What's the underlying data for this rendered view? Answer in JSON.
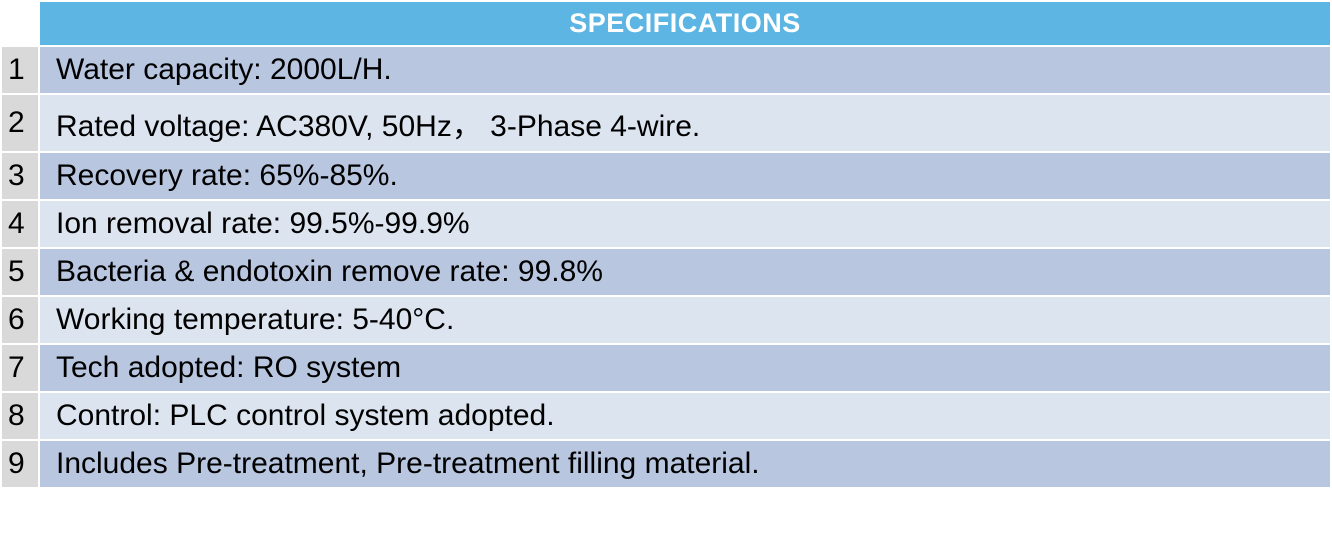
{
  "table": {
    "header": "SPECIFICATIONS",
    "rows": [
      {
        "n": "1",
        "text": "Water capacity: 2000L/H."
      },
      {
        "n": "2",
        "text": "Rated voltage: AC380V, 50Hz，   3-Phase 4-wire."
      },
      {
        "n": "3",
        "text": "Recovery rate: 65%-85%."
      },
      {
        "n": "4",
        "text": "Ion removal rate: 99.5%-99.9%"
      },
      {
        "n": "5",
        "text": "Bacteria & endotoxin remove rate: 99.8%"
      },
      {
        "n": "6",
        "text": "Working temperature: 5-40°C."
      },
      {
        "n": "7",
        "text": "Tech adopted: RO system"
      },
      {
        "n": "8",
        "text": "Control: PLC control system adopted."
      },
      {
        "n": "9",
        "text": "Includes Pre-treatment, Pre-treatment filling material."
      }
    ],
    "style": {
      "header_bg": "#5cb5e3",
      "header_fg": "#ffffff",
      "num_bg": "#d9d9d9",
      "row_a": "#b8c6e0",
      "row_b": "#dce4f0",
      "text_color": "#000000",
      "border_color": "#ffffff",
      "header_fontsize": 27,
      "body_fontsize": 30
    }
  }
}
